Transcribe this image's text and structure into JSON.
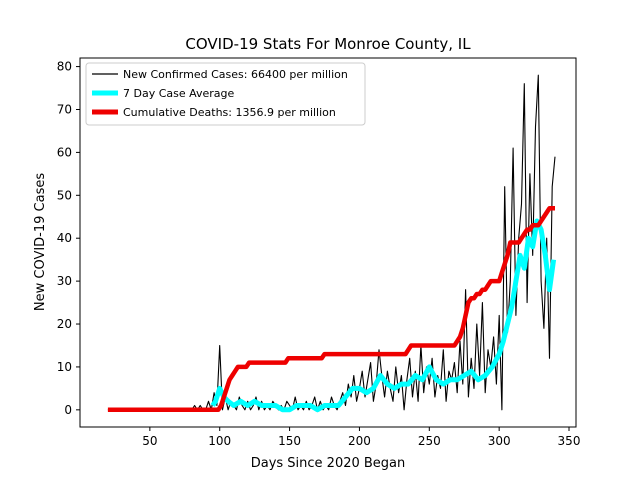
{
  "chart_data": {
    "type": "line",
    "title": "COVID-19 Stats For Monroe County, IL",
    "xlabel": "Days Since 2020 Began",
    "ylabel": "New COVID-19 Cases",
    "xlim": [
      0,
      355
    ],
    "ylim": [
      -4,
      82
    ],
    "xticks": [
      50,
      100,
      150,
      200,
      250,
      300,
      350
    ],
    "yticks": [
      0,
      10,
      20,
      30,
      40,
      50,
      60,
      70,
      80
    ],
    "grid": false,
    "legend_position": "top-left",
    "legend": [
      "New Confirmed Cases: 66400 per million",
      "7 Day Case Average",
      "Cumulative Deaths: 1356.9 per million"
    ],
    "series": [
      {
        "name": "New Confirmed Cases: 66400 per million",
        "color": "#000000",
        "x": [
          20,
          80,
          82,
          84,
          86,
          88,
          90,
          92,
          94,
          96,
          98,
          100,
          102,
          104,
          106,
          108,
          110,
          112,
          114,
          116,
          118,
          120,
          122,
          124,
          126,
          128,
          130,
          132,
          134,
          136,
          138,
          140,
          142,
          144,
          146,
          148,
          150,
          152,
          154,
          156,
          158,
          160,
          162,
          164,
          166,
          168,
          170,
          172,
          174,
          176,
          178,
          180,
          182,
          184,
          186,
          188,
          190,
          192,
          194,
          196,
          198,
          200,
          202,
          204,
          206,
          208,
          210,
          212,
          214,
          216,
          218,
          220,
          222,
          224,
          226,
          228,
          230,
          232,
          234,
          236,
          238,
          240,
          242,
          244,
          246,
          248,
          250,
          252,
          254,
          256,
          258,
          260,
          262,
          264,
          266,
          268,
          270,
          272,
          274,
          276,
          278,
          280,
          282,
          284,
          286,
          288,
          290,
          292,
          294,
          296,
          298,
          300,
          302,
          304,
          306,
          308,
          310,
          312,
          314,
          316,
          318,
          320,
          322,
          324,
          326,
          328,
          330,
          332,
          334,
          336,
          338,
          340
        ],
        "y": [
          0,
          0,
          1,
          0,
          1,
          0,
          0,
          2,
          0,
          4,
          1,
          15,
          0,
          3,
          0,
          2,
          1,
          0,
          3,
          1,
          0,
          2,
          0,
          1,
          3,
          0,
          2,
          0,
          1,
          0,
          2,
          1,
          0,
          1,
          0,
          2,
          1,
          0,
          3,
          0,
          1,
          0,
          2,
          0,
          1,
          3,
          0,
          2,
          0,
          1,
          0,
          3,
          1,
          0,
          2,
          4,
          1,
          6,
          3,
          8,
          2,
          5,
          9,
          3,
          7,
          11,
          2,
          6,
          14,
          8,
          3,
          9,
          5,
          2,
          10,
          4,
          8,
          0,
          7,
          12,
          3,
          9,
          2,
          15,
          4,
          10,
          6,
          12,
          3,
          8,
          5,
          14,
          2,
          9,
          7,
          11,
          4,
          16,
          6,
          28,
          3,
          12,
          5,
          20,
          8,
          25,
          4,
          14,
          10,
          17,
          6,
          22,
          0,
          52,
          18,
          30,
          61,
          22,
          40,
          48,
          76,
          25,
          55,
          36,
          66,
          78,
          30,
          19,
          40,
          12,
          52,
          59
        ]
      },
      {
        "name": "7 Day Case Average",
        "color": "#00ffff",
        "x": [
          95,
          97,
          100,
          103,
          106,
          110,
          115,
          120,
          125,
          130,
          135,
          140,
          145,
          150,
          155,
          160,
          165,
          170,
          175,
          180,
          185,
          190,
          195,
          200,
          205,
          210,
          215,
          220,
          225,
          230,
          235,
          240,
          245,
          250,
          255,
          260,
          265,
          270,
          275,
          280,
          285,
          290,
          295,
          300,
          303,
          306,
          309,
          312,
          315,
          318,
          321,
          324,
          327,
          330,
          333,
          336,
          339
        ],
        "y": [
          1,
          2,
          5,
          3,
          2,
          1,
          2,
          1,
          2,
          1,
          1,
          1,
          0,
          0,
          1,
          1,
          1,
          0,
          1,
          1,
          1,
          3,
          5,
          5,
          4,
          5,
          8,
          6,
          5,
          6,
          6,
          8,
          7,
          10,
          7,
          6,
          7,
          7,
          8,
          9,
          7,
          8,
          10,
          13,
          16,
          20,
          24,
          30,
          36,
          33,
          40,
          38,
          44,
          42,
          36,
          28,
          35
        ]
      },
      {
        "name": "Cumulative Deaths: 1356.9 per million",
        "color": "#ee0000",
        "x": [
          20,
          95,
          99,
          101,
          103,
          105,
          107,
          109,
          111,
          113,
          117,
          119,
          121,
          123,
          125,
          147,
          149,
          151,
          173,
          175,
          177,
          233,
          235,
          237,
          245,
          247,
          249,
          268,
          270,
          272,
          274,
          276,
          278,
          280,
          282,
          284,
          286,
          288,
          290,
          292,
          294,
          296,
          298,
          300,
          302,
          304,
          306,
          308,
          310,
          312,
          314,
          316,
          318,
          320,
          322,
          324,
          326,
          328,
          330,
          332,
          334,
          336,
          340
        ],
        "y": [
          0,
          0,
          0,
          1,
          3,
          5,
          7,
          8,
          9,
          10,
          10,
          10,
          11,
          11,
          11,
          11,
          12,
          12,
          12,
          13,
          13,
          13,
          14,
          15,
          15,
          15,
          15,
          15,
          16,
          17,
          19,
          22,
          25,
          26,
          26,
          27,
          27,
          28,
          28,
          29,
          30,
          30,
          30,
          30,
          32,
          34,
          36,
          39,
          39,
          39,
          39,
          40,
          41,
          42,
          42,
          43,
          43,
          43,
          44,
          45,
          46,
          47,
          47
        ]
      }
    ]
  }
}
